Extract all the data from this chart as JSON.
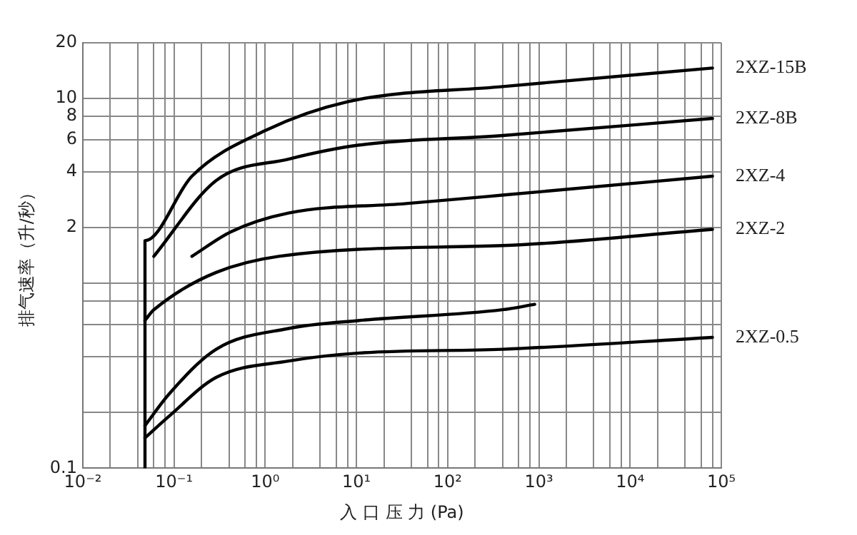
{
  "chart_data": {
    "type": "line",
    "xlabel": "入 口 压 力 (Pa)",
    "ylabel": "排气速率（升/秒）",
    "log": "xy",
    "grid": true,
    "legend": false,
    "marker": "none",
    "line_style": "solid",
    "xlim": [
      0.01,
      100000
    ],
    "ylim": [
      0.1,
      20
    ],
    "xticks": [
      {
        "value": 0.01,
        "label": "10⁻²"
      },
      {
        "value": 0.02,
        "label": null
      },
      {
        "value": 0.04,
        "label": null
      },
      {
        "value": 0.06,
        "label": null
      },
      {
        "value": 0.08,
        "label": null
      },
      {
        "value": 0.1,
        "label": "10⁻¹"
      },
      {
        "value": 0.2,
        "label": null
      },
      {
        "value": 0.4,
        "label": null
      },
      {
        "value": 0.6,
        "label": null
      },
      {
        "value": 0.8,
        "label": null
      },
      {
        "value": 1,
        "label": "10⁰"
      },
      {
        "value": 2,
        "label": null
      },
      {
        "value": 4,
        "label": null
      },
      {
        "value": 6,
        "label": null
      },
      {
        "value": 8,
        "label": null
      },
      {
        "value": 10,
        "label": "10¹"
      },
      {
        "value": 20,
        "label": null
      },
      {
        "value": 40,
        "label": null
      },
      {
        "value": 60,
        "label": null
      },
      {
        "value": 80,
        "label": null
      },
      {
        "value": 100,
        "label": "10²"
      },
      {
        "value": 200,
        "label": null
      },
      {
        "value": 400,
        "label": null
      },
      {
        "value": 600,
        "label": null
      },
      {
        "value": 800,
        "label": null
      },
      {
        "value": 1000,
        "label": "10³"
      },
      {
        "value": 2000,
        "label": null
      },
      {
        "value": 4000,
        "label": null
      },
      {
        "value": 6000,
        "label": null
      },
      {
        "value": 8000,
        "label": null
      },
      {
        "value": 10000,
        "label": "10⁴"
      },
      {
        "value": 20000,
        "label": null
      },
      {
        "value": 40000,
        "label": null
      },
      {
        "value": 60000,
        "label": null
      },
      {
        "value": 80000,
        "label": null
      },
      {
        "value": 100000,
        "label": "10⁵"
      }
    ],
    "yticks": [
      0.1,
      {
        "value": 0.2,
        "label": null
      },
      {
        "value": 0.4,
        "label": null
      },
      {
        "value": 0.6,
        "label": null
      },
      {
        "value": 0.8,
        "label": null
      },
      {
        "value": 1,
        "label": null
      },
      2,
      4,
      6,
      8,
      10,
      20
    ],
    "series": [
      {
        "name": "2XZ-15B",
        "color": "#000000",
        "x": [
          0.048,
          0.048,
          0.157,
          1,
          8,
          400,
          80000
        ],
        "values": [
          0.1,
          1.7,
          3.8,
          6.7,
          9.6,
          11.6,
          14.6
        ]
      },
      {
        "name": "2XZ-8B",
        "color": "#000000",
        "x": [
          0.06,
          0.29,
          1.8,
          10.8,
          400,
          80000
        ],
        "values": [
          1.4,
          3.6,
          4.7,
          5.6,
          6.3,
          7.8
        ]
      },
      {
        "name": "2XZ-4",
        "color": "#000000",
        "x": [
          0.157,
          0.42,
          1.8,
          35,
          400,
          80000
        ],
        "values": [
          1.4,
          1.9,
          2.4,
          2.7,
          3.0,
          3.8
        ]
      },
      {
        "name": "2XZ-2",
        "color": "#000000",
        "x": [
          0.048,
          0.06,
          1.4,
          400,
          80000
        ],
        "values": [
          0.63,
          0.72,
          1.4,
          1.6,
          1.96
        ]
      },
      {
        "color": "#000000",
        "x": [
          0.048,
          0.087,
          0.29,
          1.8,
          10.8,
          400,
          900
        ],
        "values": [
          0.17,
          0.25,
          0.44,
          0.57,
          0.63,
          0.72,
          0.77
        ]
      },
      {
        "name": "2XZ-0.5",
        "color": "#000000",
        "x": [
          0.048,
          0.087,
          0.29,
          1.8,
          10.8,
          400,
          80000
        ],
        "values": [
          0.146,
          0.19,
          0.31,
          0.38,
          0.42,
          0.44,
          0.51
        ]
      }
    ]
  }
}
